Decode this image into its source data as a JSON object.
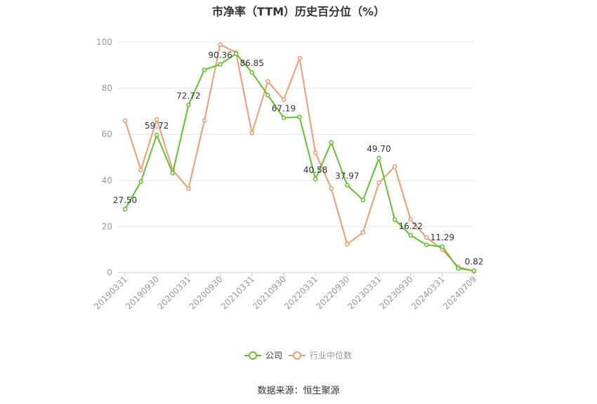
{
  "chart_data": {
    "type": "line",
    "title": "市净率（TTM）历史百分位（%）",
    "source": "数据来源：恒生聚源",
    "ylim": [
      0,
      100
    ],
    "yticks": [
      "0",
      "20",
      "40",
      "60",
      "80",
      "100"
    ],
    "xticks": [
      "20190331",
      "20190930",
      "20200331",
      "20200930",
      "20210331",
      "20210930",
      "20220331",
      "20220930",
      "20230331",
      "20230930",
      "20240331",
      "20240709"
    ],
    "grid": true,
    "legend_position": "bottom",
    "colors": {
      "company": "#5ec42a",
      "industry": "#f39b6e"
    },
    "series": [
      {
        "name": "公司",
        "values": [
          27.5,
          39.5,
          59.72,
          43.2,
          72.72,
          88.0,
          90.36,
          95.0,
          86.85,
          77.0,
          67.19,
          67.5,
          40.58,
          56.5,
          37.97,
          31.5,
          49.7,
          23.0,
          16.22,
          12.0,
          11.29,
          1.8,
          0.82
        ]
      },
      {
        "name": "行业中位数",
        "values": [
          66.0,
          44.5,
          66.5,
          44.5,
          36.5,
          66.0,
          99.0,
          95.5,
          60.5,
          83.0,
          75.0,
          93.0,
          52.0,
          36.5,
          12.3,
          17.5,
          39.0,
          46.0,
          23.0,
          15.2,
          10.0,
          2.5,
          0.6
        ]
      }
    ],
    "data_labels": [
      {
        "index": 0,
        "text": "27.50"
      },
      {
        "index": 2,
        "text": "59.72"
      },
      {
        "index": 4,
        "text": "72.72"
      },
      {
        "index": 6,
        "text": "90.36"
      },
      {
        "index": 8,
        "text": "86.85"
      },
      {
        "index": 10,
        "text": "67.19"
      },
      {
        "index": 12,
        "text": "40.58"
      },
      {
        "index": 14,
        "text": "37.97"
      },
      {
        "index": 16,
        "text": "49.70"
      },
      {
        "index": 18,
        "text": "16.22"
      },
      {
        "index": 20,
        "text": "11.29"
      },
      {
        "index": 22,
        "text": "0.82"
      }
    ]
  }
}
